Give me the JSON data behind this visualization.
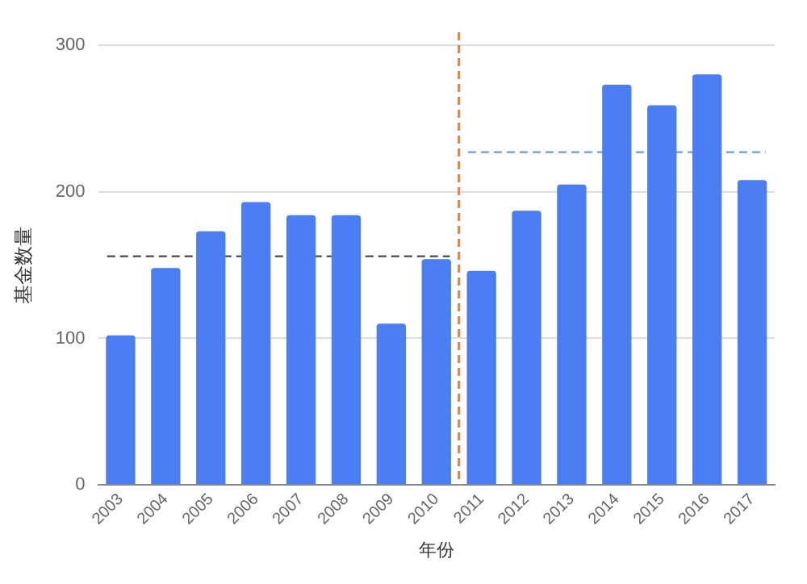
{
  "chart_data": {
    "type": "bar",
    "xlabel": "年份",
    "ylabel": "基金数量",
    "x": [
      2003,
      2004,
      2005,
      2006,
      2007,
      2008,
      2009,
      2010,
      2011,
      2012,
      2013,
      2014,
      2015,
      2016,
      2017
    ],
    "xlim": [
      2002.5,
      2017.5
    ],
    "xticks": [
      2003,
      2004,
      2005,
      2006,
      2007,
      2008,
      2009,
      2010,
      2011,
      2012,
      2013,
      2014,
      2015,
      2016,
      2017
    ],
    "ylim": [
      0,
      300
    ],
    "yticks": [
      0,
      100,
      200,
      300
    ],
    "grid": "y",
    "legend": false,
    "series": [
      {
        "color": "#4a7ef2",
        "values": [
          102,
          148,
          173,
          193,
          184,
          184,
          110,
          154,
          146,
          187,
          205,
          273,
          259,
          280,
          208
        ]
      },
      {
        "type": "line",
        "color": "#555b66",
        "x": [
          2002.7,
          2010.3
        ],
        "values": [
          156,
          156
        ],
        "line_style": "dashed",
        "marker": "none"
      },
      {
        "type": "line",
        "color": "#6a9ed8",
        "x": [
          2010.7,
          2017.3
        ],
        "values": [
          227,
          227
        ],
        "line_style": "dashed",
        "marker": "none"
      }
    ],
    "ref_lines": [
      {
        "axis": "x",
        "value": 2010.5,
        "color": "#e8803a",
        "line_style": "dashed"
      }
    ]
  }
}
